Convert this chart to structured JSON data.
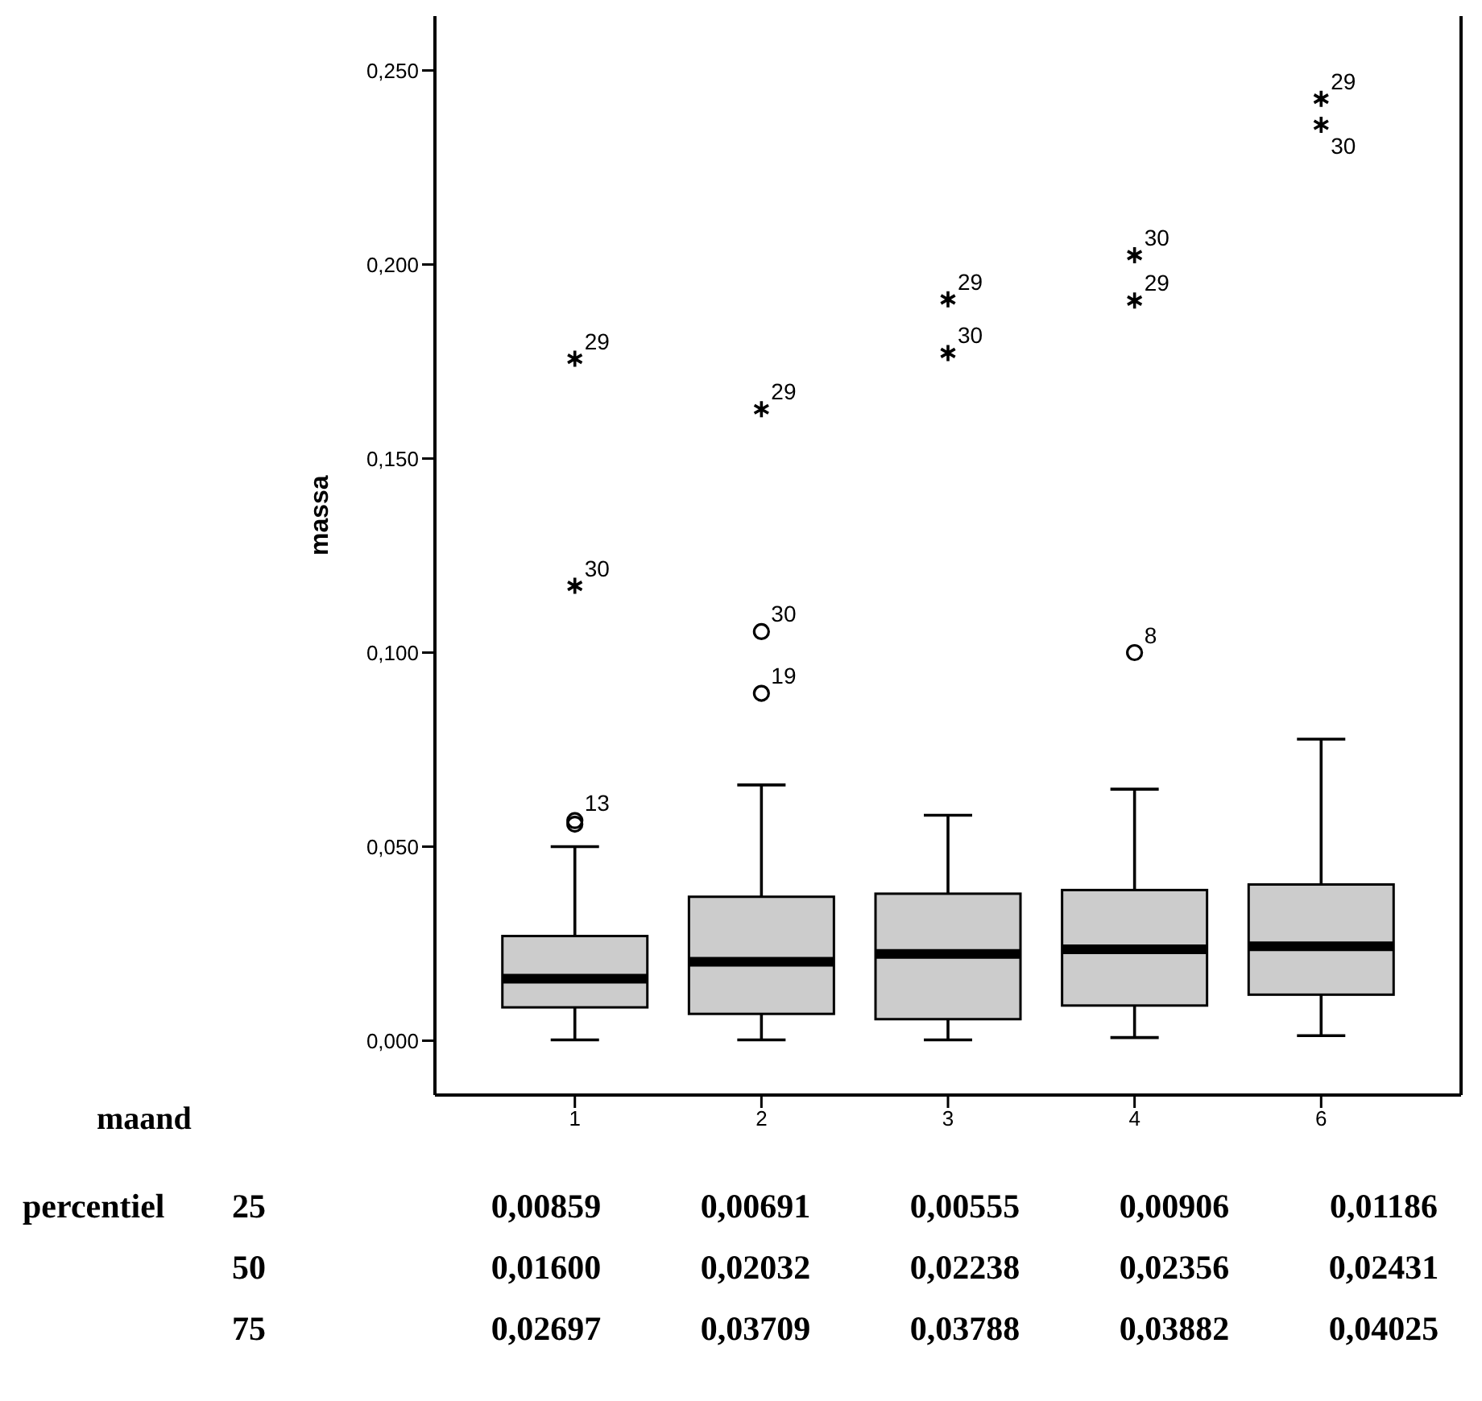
{
  "chart_data": {
    "type": "box",
    "ylabel": "massa",
    "categories": [
      "1",
      "2",
      "3",
      "4",
      "6"
    ],
    "boxes": [
      {
        "low": 0.0002,
        "q1": 0.00859,
        "median": 0.016,
        "q3": 0.02697,
        "high": 0.05
      },
      {
        "low": 0.0002,
        "q1": 0.00691,
        "median": 0.02032,
        "q3": 0.03709,
        "high": 0.0659
      },
      {
        "low": 0.0002,
        "q1": 0.00555,
        "median": 0.02238,
        "q3": 0.03788,
        "high": 0.0581
      },
      {
        "low": 0.0008,
        "q1": 0.00906,
        "median": 0.02356,
        "q3": 0.03882,
        "high": 0.0648
      },
      {
        "low": 0.0013,
        "q1": 0.01186,
        "median": 0.02431,
        "q3": 0.04025,
        "high": 0.0777
      }
    ],
    "color": "#cccccc",
    "series": [
      {
        "type": "scatter",
        "marker": "circle",
        "color": "#000000",
        "x": [
          "1",
          "1",
          "2",
          "2",
          "4"
        ],
        "values": [
          0.0567,
          0.0558,
          0.1054,
          0.0895,
          0.1
        ]
      },
      {
        "type": "scatter",
        "marker": "cross",
        "color": "#000000",
        "x": [
          "1",
          "1",
          "2",
          "3",
          "3",
          "4",
          "4",
          "6",
          "6"
        ],
        "values": [
          0.1757,
          0.1172,
          0.1627,
          0.191,
          0.1772,
          0.2024,
          0.1907,
          0.2427,
          0.236
        ]
      }
    ],
    "ylim": [
      -0.014,
      0.264
    ],
    "yticks": [
      {
        "value": 0,
        "label": "0,000"
      },
      {
        "value": 0.05,
        "label": "0,050"
      },
      {
        "value": 0.1,
        "label": "0,100"
      },
      {
        "value": 0.15,
        "label": "0,150"
      },
      {
        "value": 0.2,
        "label": "0,200"
      },
      {
        "value": 0.25,
        "label": "0,250"
      }
    ],
    "annotations": [
      "maand",
      "percentiel",
      "25",
      "50",
      "75",
      "0,00859",
      "0,00691",
      "0,00555",
      "0,00906",
      "0,01186",
      "0,01600",
      "0,02032",
      "0,02238",
      "0,02356",
      "0,02431",
      "0,02697",
      "0,03709",
      "0,03788",
      "0,03882",
      "0,04025",
      {
        "text": "29",
        "x": "1",
        "y": 0.1757
      },
      {
        "text": "30",
        "x": "1",
        "y": 0.1172
      },
      {
        "text": "13",
        "x": "1",
        "y": 0.0567
      },
      {
        "text": "29",
        "x": "2",
        "y": 0.1627
      },
      {
        "text": "30",
        "x": "2",
        "y": 0.1054
      },
      {
        "text": "19",
        "x": "2",
        "y": 0.0895
      },
      {
        "text": "29",
        "x": "3",
        "y": 0.191
      },
      {
        "text": "30",
        "x": "3",
        "y": 0.1772
      },
      {
        "text": "30",
        "x": "4",
        "y": 0.2024
      },
      {
        "text": "29",
        "x": "4",
        "y": 0.1907
      },
      {
        "text": "8",
        "x": "4",
        "y": 0.1
      },
      {
        "text": "29",
        "x": "6",
        "y": 0.2427
      },
      {
        "text": "30",
        "x": "6",
        "y": 0.236
      }
    ]
  }
}
